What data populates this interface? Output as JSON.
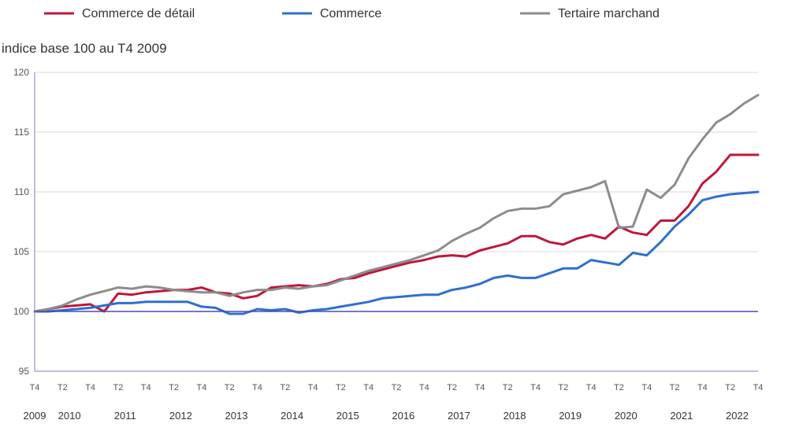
{
  "chart_data": {
    "type": "line",
    "ylabel": "indice base 100 au T4 2009",
    "ylim": [
      95,
      120
    ],
    "yticks": [
      95,
      100,
      105,
      110,
      115,
      120
    ],
    "grid": true,
    "legend_position": "top",
    "quarter_tick_labels": [
      "T4",
      "T2",
      "T4",
      "T2",
      "T4",
      "T2",
      "T4",
      "T2",
      "T4",
      "T2",
      "T4",
      "T2",
      "T4",
      "T2",
      "T4",
      "T2",
      "T4",
      "T2",
      "T4",
      "T2",
      "T4",
      "T2",
      "T4",
      "T2",
      "T4",
      "T2",
      "T4"
    ],
    "year_labels": [
      "2009",
      "2010",
      "2011",
      "2012",
      "2013",
      "2014",
      "2015",
      "2016",
      "2017",
      "2018",
      "2019",
      "2020",
      "2021",
      "2022"
    ],
    "year_label_quarter_index": [
      0,
      2.5,
      6.5,
      10.5,
      14.5,
      18.5,
      22.5,
      26.5,
      30.5,
      34.5,
      38.5,
      42.5,
      46.5,
      50.5
    ],
    "x_quarter_count": 53,
    "series": [
      {
        "name": "Commerce de détail",
        "color": "#c0163a",
        "values": [
          100.0,
          100.2,
          100.4,
          100.5,
          100.6,
          100.0,
          101.5,
          101.4,
          101.6,
          101.7,
          101.8,
          101.8,
          102.0,
          101.6,
          101.5,
          101.1,
          101.3,
          102.0,
          102.1,
          102.2,
          102.1,
          102.3,
          102.7,
          102.8,
          103.2,
          103.5,
          103.8,
          104.1,
          104.3,
          104.6,
          104.7,
          104.6,
          105.1,
          105.4,
          105.7,
          106.3,
          106.3,
          105.8,
          105.6,
          106.1,
          106.4,
          106.1,
          107.1,
          106.6,
          106.4,
          107.6,
          107.6,
          108.8,
          110.7,
          111.7,
          113.1,
          113.1,
          113.1
        ]
      },
      {
        "name": "Commerce",
        "color": "#2f6fce",
        "values": [
          100.0,
          100.0,
          100.1,
          100.2,
          100.3,
          100.5,
          100.7,
          100.7,
          100.8,
          100.8,
          100.8,
          100.8,
          100.4,
          100.3,
          99.8,
          99.8,
          100.2,
          100.1,
          100.2,
          99.9,
          100.1,
          100.2,
          100.4,
          100.6,
          100.8,
          101.1,
          101.2,
          101.3,
          101.4,
          101.4,
          101.8,
          102.0,
          102.3,
          102.8,
          103.0,
          102.8,
          102.8,
          103.2,
          103.6,
          103.6,
          104.3,
          104.1,
          103.9,
          104.9,
          104.7,
          105.8,
          107.1,
          108.1,
          109.3,
          109.6,
          109.8,
          109.9,
          110.0
        ]
      },
      {
        "name": "Tertaire marchand",
        "color": "#8c8c8c",
        "values": [
          100.0,
          100.2,
          100.5,
          101.0,
          101.4,
          101.7,
          102.0,
          101.9,
          102.1,
          102.0,
          101.8,
          101.7,
          101.6,
          101.6,
          101.3,
          101.6,
          101.8,
          101.8,
          102.0,
          101.9,
          102.1,
          102.2,
          102.6,
          103.0,
          103.4,
          103.7,
          104.0,
          104.3,
          104.7,
          105.1,
          105.9,
          106.5,
          107.0,
          107.8,
          108.4,
          108.6,
          108.6,
          108.8,
          109.8,
          110.1,
          110.4,
          110.9,
          107.0,
          107.1,
          110.2,
          109.5,
          110.6,
          112.8,
          114.4,
          115.8,
          116.5,
          117.4,
          118.1
        ]
      }
    ]
  }
}
